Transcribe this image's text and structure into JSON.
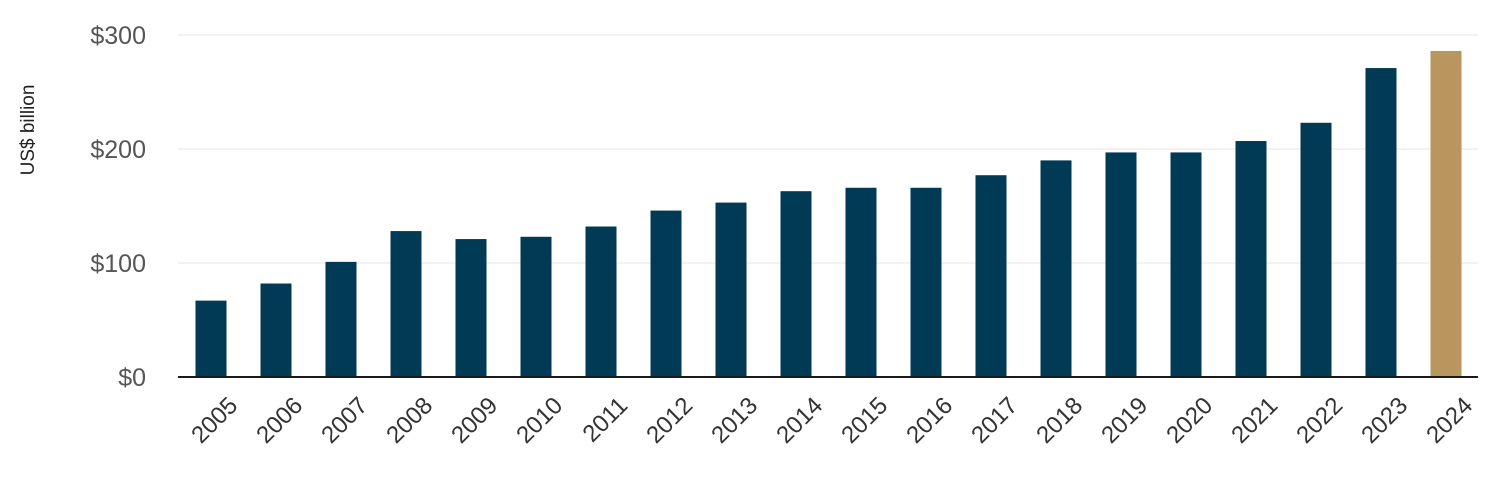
{
  "chart_data": {
    "type": "bar",
    "ylabel": "US$ billion",
    "categories": [
      "2005",
      "2006",
      "2007",
      "2008",
      "2009",
      "2010",
      "2011",
      "2012",
      "2013",
      "2014",
      "2015",
      "2016",
      "2017",
      "2018",
      "2019",
      "2020",
      "2021",
      "2022",
      "2023",
      "2024"
    ],
    "values": [
      67,
      82,
      101,
      128,
      121,
      123,
      132,
      146,
      153,
      163,
      166,
      166,
      177,
      190,
      197,
      197,
      207,
      223,
      271,
      286
    ],
    "ylim": [
      0,
      300
    ],
    "yticks": [
      0,
      100,
      200,
      300
    ],
    "ytick_labels": [
      "$0",
      "$100",
      "$200",
      "$300"
    ],
    "grid": true,
    "colors": {
      "default_bar": "#003a55",
      "highlight_bar": "#b8965e",
      "highlight_category": "2024"
    }
  }
}
